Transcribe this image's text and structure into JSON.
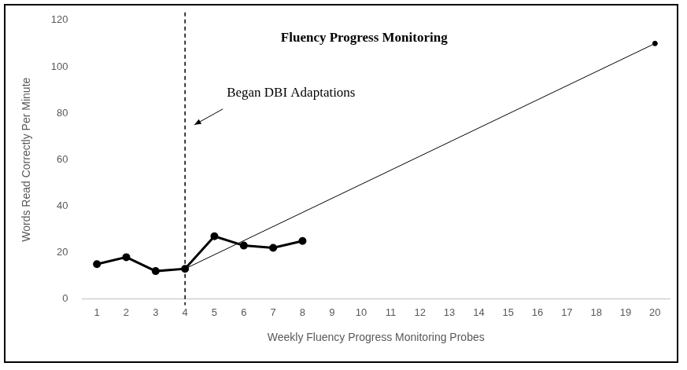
{
  "chart_data": {
    "type": "line",
    "title": "Fluency Progress Monitoring",
    "x_label": "Weekly Fluency Progress Monitoring Probes",
    "y_label": "Words Read Correctly Per Minute",
    "xlim": [
      0.5,
      20.5
    ],
    "xticks": [
      1,
      2,
      3,
      4,
      5,
      6,
      7,
      8,
      9,
      10,
      11,
      12,
      13,
      14,
      15,
      16,
      17,
      18,
      19,
      20
    ],
    "ylim": [
      0,
      120
    ],
    "yticks": [
      0,
      20,
      40,
      60,
      80,
      100,
      120
    ],
    "grid": false,
    "series": [
      {
        "x": [
          1,
          2,
          3,
          4,
          5,
          6,
          7,
          8
        ],
        "values": [
          15,
          18,
          12,
          13,
          27,
          23,
          22,
          25
        ],
        "color": "#000000",
        "marker": "circle",
        "line_style": "solid"
      },
      {
        "x": [
          4,
          20
        ],
        "values": [
          13,
          110
        ],
        "color": "#000000",
        "marker": "circle",
        "line_style": "solid"
      }
    ],
    "annotations": [
      {
        "text": "Began DBI Adaptations",
        "x": 4,
        "line_style": "dashed"
      }
    ]
  }
}
